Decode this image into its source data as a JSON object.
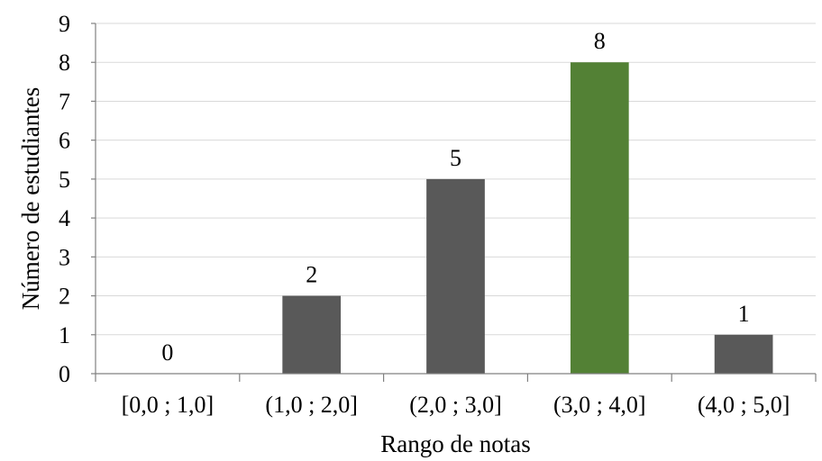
{
  "chart_data": {
    "type": "bar",
    "title": "",
    "xlabel": "Rango de notas",
    "ylabel": "Número de estudiantes",
    "categories": [
      "[0,0 ; 1,0]",
      "(1,0 ; 2,0]",
      "(2,0 ; 3,0]",
      "(3,0 ; 4,0]",
      "(4,0 ; 5,0]"
    ],
    "values": [
      0,
      2,
      5,
      8,
      1
    ],
    "data_labels": [
      "0",
      "2",
      "5",
      "8",
      "1"
    ],
    "ylim": [
      0,
      9
    ],
    "yticks": [
      "0",
      "1",
      "2",
      "3",
      "4",
      "5",
      "6",
      "7",
      "8",
      "9"
    ],
    "grid": true,
    "legend": "none",
    "bar_colors": [
      "#595959",
      "#595959",
      "#595959",
      "#538135",
      "#595959"
    ]
  }
}
